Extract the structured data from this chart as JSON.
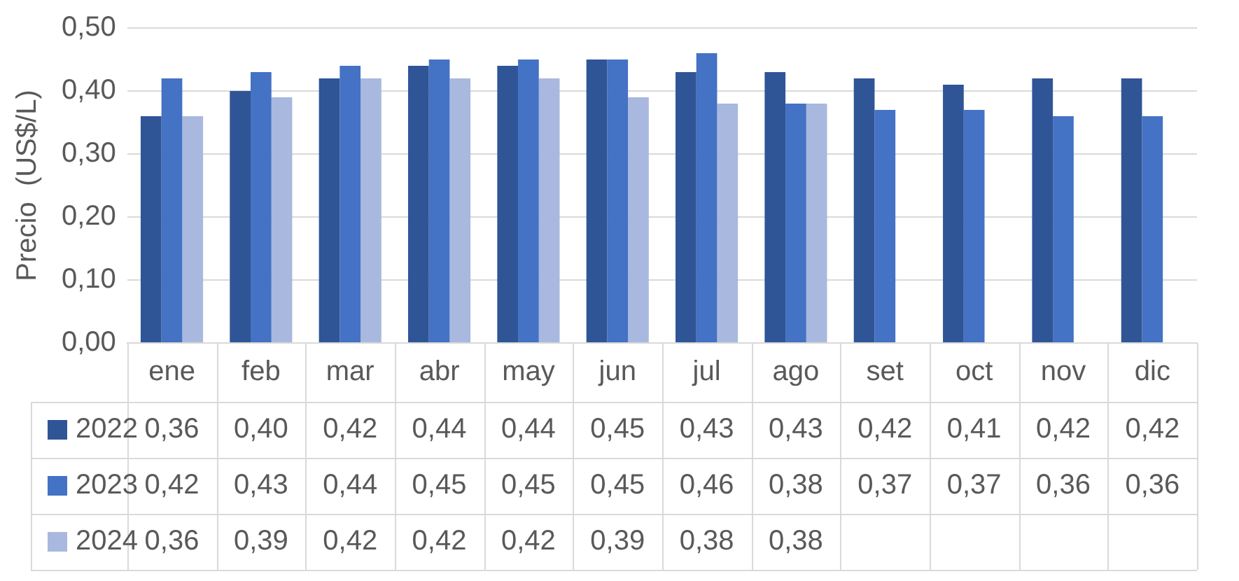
{
  "chart_data": {
    "type": "bar",
    "ylabel": "Precio  (US$/L)",
    "categories": [
      "ene",
      "feb",
      "mar",
      "abr",
      "may",
      "jun",
      "jul",
      "ago",
      "set",
      "oct",
      "nov",
      "dic"
    ],
    "series": [
      {
        "name": "2022",
        "color": "#2f5597",
        "values": [
          0.36,
          0.4,
          0.42,
          0.44,
          0.44,
          0.45,
          0.43,
          0.43,
          0.42,
          0.41,
          0.42,
          0.42
        ],
        "value_labels": [
          "0,36",
          "0,40",
          "0,42",
          "0,44",
          "0,44",
          "0,45",
          "0,43",
          "0,43",
          "0,42",
          "0,41",
          "0,42",
          "0,42"
        ]
      },
      {
        "name": "2023",
        "color": "#4472c4",
        "values": [
          0.42,
          0.43,
          0.44,
          0.45,
          0.45,
          0.45,
          0.46,
          0.38,
          0.37,
          0.37,
          0.36,
          0.36
        ],
        "value_labels": [
          "0,42",
          "0,43",
          "0,44",
          "0,45",
          "0,45",
          "0,45",
          "0,46",
          "0,38",
          "0,37",
          "0,37",
          "0,36",
          "0,36"
        ]
      },
      {
        "name": "2024",
        "color": "#a9b8de",
        "values": [
          0.36,
          0.39,
          0.42,
          0.42,
          0.42,
          0.39,
          0.38,
          0.38,
          null,
          null,
          null,
          null
        ],
        "value_labels": [
          "0,36",
          "0,39",
          "0,42",
          "0,42",
          "0,42",
          "0,39",
          "0,38",
          "0,38",
          null,
          null,
          null,
          null
        ]
      }
    ],
    "ylim": [
      0,
      0.5
    ],
    "yticks": [
      {
        "value": 0,
        "label": "0,00"
      },
      {
        "value": 0.1,
        "label": "0,10"
      },
      {
        "value": 0.2,
        "label": "0,20"
      },
      {
        "value": 0.3,
        "label": "0,30"
      },
      {
        "value": 0.4,
        "label": "0,40"
      },
      {
        "value": 0.5,
        "label": "0,50"
      }
    ],
    "grid": "y",
    "legend": "bottom"
  }
}
